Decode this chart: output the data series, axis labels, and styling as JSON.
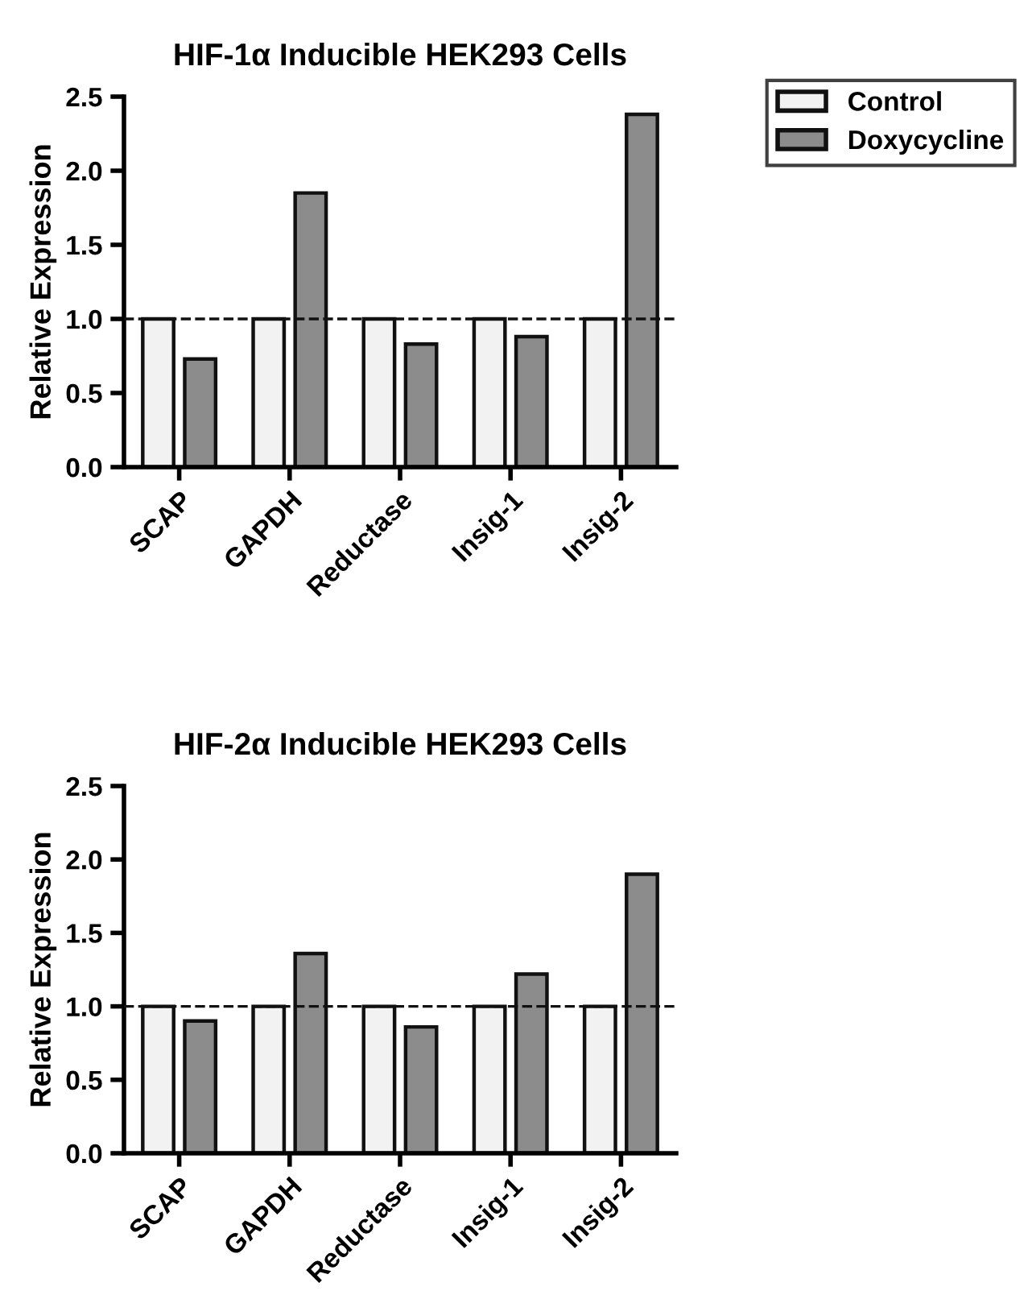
{
  "chart_data": [
    {
      "type": "bar",
      "title": "HIF-1α Inducible HEK293 Cells",
      "ylabel": "Relative Expression",
      "categories": [
        "SCAP",
        "GAPDH",
        "Reductase",
        "Insig-1",
        "Insig-2"
      ],
      "series": [
        {
          "name": "Control",
          "color": "#f2f2f2",
          "values": [
            1.0,
            1.0,
            1.0,
            1.0,
            1.0
          ]
        },
        {
          "name": "Doxycycline",
          "color": "#8c8c8c",
          "values": [
            0.73,
            1.85,
            0.83,
            0.88,
            2.38
          ]
        }
      ],
      "ylim": [
        0,
        2.5
      ],
      "yticks": [
        {
          "value": 0,
          "label": "0.0"
        },
        {
          "value": 0.5,
          "label": "0.5"
        },
        {
          "value": 1,
          "label": "1.0"
        },
        {
          "value": 1.5,
          "label": "1.5"
        },
        {
          "value": 2,
          "label": "2.0"
        },
        {
          "value": 2.5,
          "label": "2.5"
        }
      ],
      "ref_lines": [
        {
          "axis": "y",
          "value": 1,
          "label": null,
          "line_style": "dashed"
        }
      ],
      "legend": "top right",
      "grid": false
    },
    {
      "type": "bar",
      "title": "HIF-2α Inducible HEK293 Cells",
      "ylabel": "Relative Expression",
      "categories": [
        "SCAP",
        "GAPDH",
        "Reductase",
        "Insig-1",
        "Insig-2"
      ],
      "series": [
        {
          "color": "#f2f2f2",
          "values": [
            1.0,
            1.0,
            1.0,
            1.0,
            1.0
          ]
        },
        {
          "color": "#8c8c8c",
          "values": [
            0.9,
            1.36,
            0.86,
            1.22,
            1.9
          ]
        }
      ],
      "ylim": [
        0,
        2.5
      ],
      "yticks": [
        {
          "value": 0,
          "label": "0.0"
        },
        {
          "value": 0.5,
          "label": "0.5"
        },
        {
          "value": 1,
          "label": "1.0"
        },
        {
          "value": 1.5,
          "label": "1.5"
        },
        {
          "value": 2,
          "label": "2.0"
        },
        {
          "value": 2.5,
          "label": "2.5"
        }
      ],
      "ref_lines": [
        {
          "axis": "y",
          "value": 1,
          "label": null,
          "line_style": "dashed"
        }
      ],
      "grid": false
    }
  ]
}
